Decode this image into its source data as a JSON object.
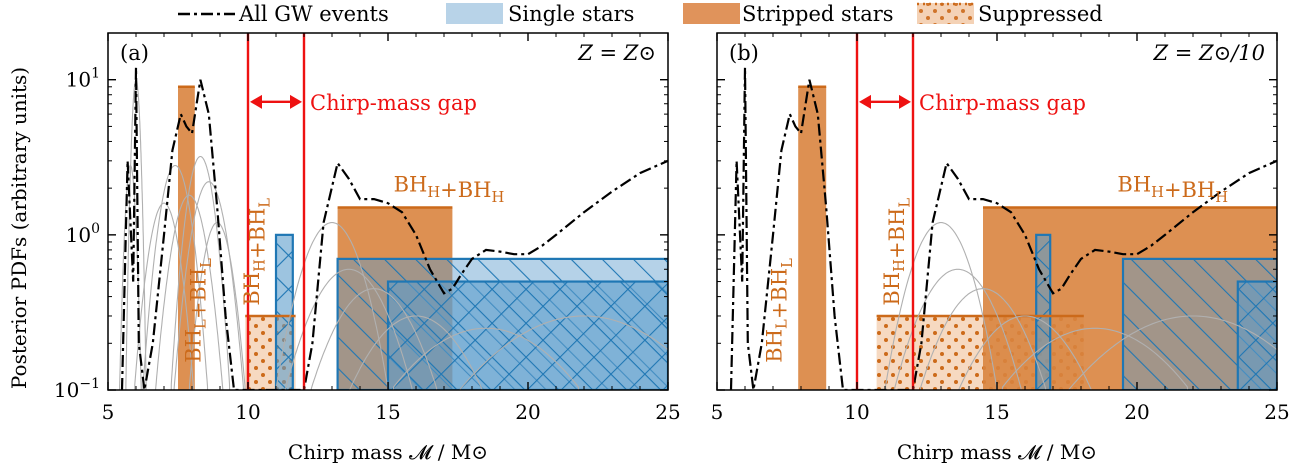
{
  "legend": {
    "placement": "top-center",
    "items": [
      {
        "label": "All GW events",
        "kind": "dashdot-line",
        "color": "#000000"
      },
      {
        "label": "Single stars",
        "kind": "patch",
        "color": "#b8d3e8"
      },
      {
        "label": "Stripped stars",
        "kind": "patch",
        "color": "#e0935b"
      },
      {
        "label": "Suppressed",
        "kind": "dotted-patch",
        "color": "#e0935b"
      }
    ]
  },
  "colors": {
    "stripped": "#d9843f",
    "stripped_edge": "#cc6a1a",
    "single_edge": "#1f77b4",
    "single_fill": "#5b9ccc",
    "single_light": "#c6dcee",
    "gap_line": "#ee1111",
    "posterior_lines": "#b0b0b0"
  },
  "chart_data": [
    {
      "type": "area",
      "panel_label": "(a)",
      "metallicity_label": "Z = Z⊙",
      "xlabel": "Chirp mass 𝓜 / M⊙",
      "ylabel": "Posterior PDFs (arbitrary units)",
      "xlim": [
        5,
        25
      ],
      "ylim": [
        0.1,
        20
      ],
      "yscale": "log",
      "xticks": [
        "5",
        "10",
        "15",
        "20",
        "25"
      ],
      "yticks": [
        "10^-1",
        "10^0",
        "10^1"
      ],
      "gap": {
        "x": [
          10,
          12
        ],
        "label": "Chirp-mass gap"
      },
      "stripped_boxes": [
        {
          "x": [
            7.5,
            8.1
          ],
          "y": 9.0,
          "suppressed": false
        },
        {
          "x": [
            9.9,
            11.7
          ],
          "y": 0.3,
          "suppressed": true
        },
        {
          "x": [
            13.2,
            17.3
          ],
          "y": 1.5,
          "suppressed": false
        }
      ],
      "single_boxes": [
        {
          "x": [
            11.0,
            11.6
          ],
          "y": 1.0,
          "hatch": "cross"
        },
        {
          "x": [
            13.2,
            25.0
          ],
          "y": 0.7,
          "hatch": "diag"
        },
        {
          "x": [
            15.0,
            25.0
          ],
          "y": 0.5,
          "hatch": "cross"
        }
      ],
      "annotations": [
        {
          "text": "BH_L+BH_L",
          "x": 8.3,
          "y": 0.15,
          "rotate": -90
        },
        {
          "text": "BH_H+BH_L",
          "x": 10.4,
          "y": 0.35,
          "rotate": -90
        },
        {
          "text": "BH_H+BH_H",
          "x": 15.2,
          "y": 1.9,
          "rotate": 0
        }
      ],
      "all_gw_events": {
        "x": [
          5.5,
          5.7,
          5.9,
          6.0,
          6.1,
          6.3,
          6.6,
          7.0,
          7.3,
          7.6,
          7.8,
          8.0,
          8.3,
          8.6,
          8.9,
          9.2,
          9.5,
          9.7,
          12.0,
          12.3,
          12.7,
          13.2,
          13.6,
          14.0,
          14.5,
          15.0,
          15.5,
          16.0,
          16.5,
          17.0,
          17.3,
          17.6,
          18.0,
          18.5,
          19.0,
          19.5,
          20.0,
          20.5,
          21.0,
          22.0,
          23.0,
          24.0,
          25.0
        ],
        "y": [
          0.1,
          3.0,
          0.5,
          12.0,
          0.2,
          0.1,
          0.2,
          1.0,
          3.5,
          6.0,
          5.0,
          4.5,
          10.0,
          6.0,
          1.5,
          0.3,
          0.1,
          0.1,
          0.1,
          0.2,
          1.2,
          2.9,
          2.3,
          1.7,
          1.7,
          1.6,
          1.4,
          1.0,
          0.6,
          0.42,
          0.45,
          0.55,
          0.7,
          0.8,
          0.78,
          0.75,
          0.75,
          0.85,
          1.0,
          1.4,
          1.9,
          2.5,
          3.0
        ]
      }
    },
    {
      "type": "area",
      "panel_label": "(b)",
      "metallicity_label": "Z = Z⊙/10",
      "xlabel": "Chirp mass 𝓜 / M⊙",
      "ylabel": "",
      "xlim": [
        5,
        25
      ],
      "ylim": [
        0.1,
        20
      ],
      "yscale": "log",
      "xticks": [
        "5",
        "10",
        "15",
        "20",
        "25"
      ],
      "yticks": [],
      "gap": {
        "x": [
          10,
          12
        ],
        "label": "Chirp-mass gap"
      },
      "stripped_boxes": [
        {
          "x": [
            7.9,
            8.9
          ],
          "y": 9.0,
          "suppressed": false
        },
        {
          "x": [
            10.7,
            18.1
          ],
          "y": 0.3,
          "suppressed": true
        },
        {
          "x": [
            14.5,
            25.0
          ],
          "y": 1.5,
          "suppressed": false
        }
      ],
      "single_boxes": [
        {
          "x": [
            16.4,
            16.9
          ],
          "y": 1.0,
          "hatch": "cross"
        },
        {
          "x": [
            19.5,
            25.0
          ],
          "y": 0.7,
          "hatch": "diag"
        },
        {
          "x": [
            23.6,
            25.0
          ],
          "y": 0.5,
          "hatch": "cross"
        }
      ],
      "annotations": [
        {
          "text": "BH_L+BH_L",
          "x": 7.3,
          "y": 0.15,
          "rotate": -90
        },
        {
          "text": "BH_H+BH_L",
          "x": 11.5,
          "y": 0.35,
          "rotate": -90
        },
        {
          "text": "BH_H+BH_H",
          "x": 19.3,
          "y": 1.9,
          "rotate": 0
        }
      ],
      "all_gw_events": {
        "x": [
          5.5,
          5.7,
          5.9,
          6.0,
          6.1,
          6.3,
          6.6,
          7.0,
          7.3,
          7.6,
          7.8,
          8.0,
          8.3,
          8.6,
          8.9,
          9.2,
          9.5,
          9.7,
          12.0,
          12.3,
          12.7,
          13.2,
          13.6,
          14.0,
          14.5,
          15.0,
          15.5,
          16.0,
          16.5,
          17.0,
          17.3,
          17.6,
          18.0,
          18.5,
          19.0,
          19.5,
          20.0,
          20.5,
          21.0,
          22.0,
          23.0,
          24.0,
          25.0
        ],
        "y": [
          0.1,
          3.0,
          0.5,
          12.0,
          0.2,
          0.1,
          0.2,
          1.0,
          3.5,
          6.0,
          5.0,
          4.5,
          10.0,
          6.0,
          1.5,
          0.3,
          0.1,
          0.1,
          0.1,
          0.2,
          1.2,
          2.9,
          2.3,
          1.7,
          1.7,
          1.6,
          1.4,
          1.0,
          0.6,
          0.42,
          0.45,
          0.55,
          0.7,
          0.8,
          0.78,
          0.75,
          0.75,
          0.85,
          1.0,
          1.4,
          1.9,
          2.5,
          3.0
        ]
      },
      "posterior_curves": [
        {
          "mu": 13.0,
          "sigma": 0.9,
          "peak": 1.2
        },
        {
          "mu": 13.6,
          "sigma": 1.2,
          "peak": 0.6
        },
        {
          "mu": 14.5,
          "sigma": 1.3,
          "peak": 0.45
        },
        {
          "mu": 16.0,
          "sigma": 1.6,
          "peak": 0.3
        },
        {
          "mu": 18.5,
          "sigma": 2.5,
          "peak": 0.25
        },
        {
          "mu": 22.0,
          "sigma": 3.0,
          "peak": 0.3
        }
      ]
    }
  ],
  "posterior_curves_panel_a": [
    {
      "mu": 5.8,
      "sigma": 0.15,
      "peak": 2.8
    },
    {
      "mu": 6.0,
      "sigma": 0.12,
      "peak": 10.0
    },
    {
      "mu": 7.0,
      "sigma": 0.45,
      "peak": 1.6
    },
    {
      "mu": 7.4,
      "sigma": 0.45,
      "peak": 2.8
    },
    {
      "mu": 7.9,
      "sigma": 0.5,
      "peak": 1.8
    },
    {
      "mu": 8.3,
      "sigma": 0.4,
      "peak": 3.2
    },
    {
      "mu": 8.6,
      "sigma": 0.5,
      "peak": 2.2
    },
    {
      "mu": 8.9,
      "sigma": 0.45,
      "peak": 1.2
    },
    {
      "mu": 13.0,
      "sigma": 0.9,
      "peak": 1.2
    },
    {
      "mu": 13.6,
      "sigma": 1.2,
      "peak": 0.6
    },
    {
      "mu": 14.5,
      "sigma": 1.3,
      "peak": 0.45
    },
    {
      "mu": 16.0,
      "sigma": 1.6,
      "peak": 0.3
    },
    {
      "mu": 18.5,
      "sigma": 2.5,
      "peak": 0.25
    },
    {
      "mu": 22.0,
      "sigma": 3.0,
      "peak": 0.3
    }
  ]
}
